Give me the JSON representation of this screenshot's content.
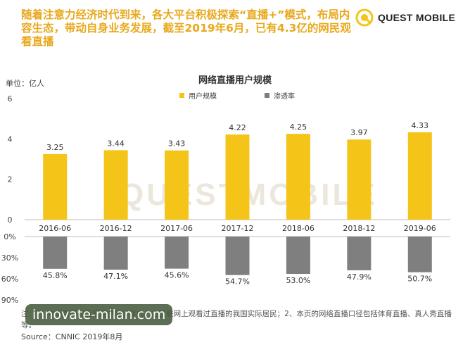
{
  "header": {
    "text": "随着注意力经济时代到来，各大平台积极探索“直播+”模式，布局内容生态，带动自身业务发展，截至2019年6月，已有4.3亿的网民观看直播",
    "logo_text": "QUEST MOBILE"
  },
  "unit_label": "单位：亿人",
  "watermark": "QUESTMOBILE",
  "colors": {
    "bar": "#f5c419",
    "penetration": "#7f7f7f",
    "header": "#e8a81c"
  },
  "chart_data": {
    "type": "bar",
    "title": "网络直播用户规模",
    "categories": [
      "2016-06",
      "2016-12",
      "2017-06",
      "2017-12",
      "2018-06",
      "2018-12",
      "2019-06"
    ],
    "series": [
      {
        "name": "用户规模",
        "values": [
          3.25,
          3.44,
          3.43,
          4.22,
          4.25,
          3.97,
          4.33
        ],
        "labels": [
          "3.25",
          "3.44",
          "3.43",
          "4.22",
          "4.25",
          "3.97",
          "4.33"
        ]
      },
      {
        "name": "渗透率",
        "values": [
          45.8,
          47.1,
          45.6,
          54.7,
          53.0,
          47.9,
          50.7
        ],
        "labels": [
          "45.8%",
          "47.1%",
          "45.6%",
          "54.7%",
          "53.0%",
          "47.9%",
          "50.7%"
        ]
      }
    ],
    "upper_ylim": [
      0,
      6
    ],
    "upper_yticks": [
      "0",
      "2",
      "4",
      "6"
    ],
    "lower_ylim": [
      0,
      90
    ],
    "lower_yticks": [
      "0%",
      "30%",
      "60%",
      "90%"
    ],
    "legend_position": "top"
  },
  "footnote": "注：1、本报告网络直播用户指半年内，在互联网上观看过直播的我国实际居民；2、本页的网络直播口径包括体育直播、真人秀直播等。",
  "source": "Source：CNNIC 2019年8月",
  "site_badge": "innovate-milan.com"
}
